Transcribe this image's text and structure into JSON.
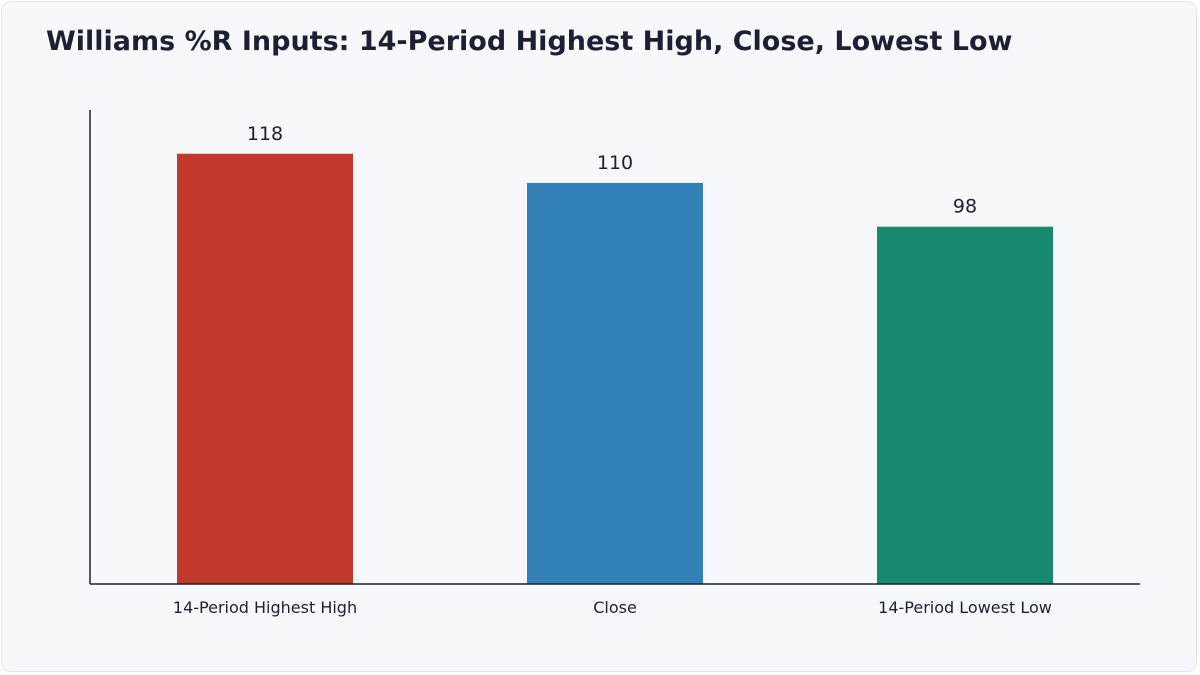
{
  "chart_data": {
    "type": "bar",
    "title": "Williams %R Inputs: 14-Period Highest High, Close, Lowest Low",
    "xlabel": "",
    "ylabel": "",
    "categories": [
      "14-Period Highest High",
      "Close",
      "14-Period Lowest Low"
    ],
    "values": [
      118,
      110,
      98
    ],
    "colors": [
      "#c0392b",
      "#3282b8",
      "#178a6f"
    ],
    "ylim": [
      0,
      130
    ],
    "grid": false,
    "legend": "none",
    "data_labels": true
  }
}
